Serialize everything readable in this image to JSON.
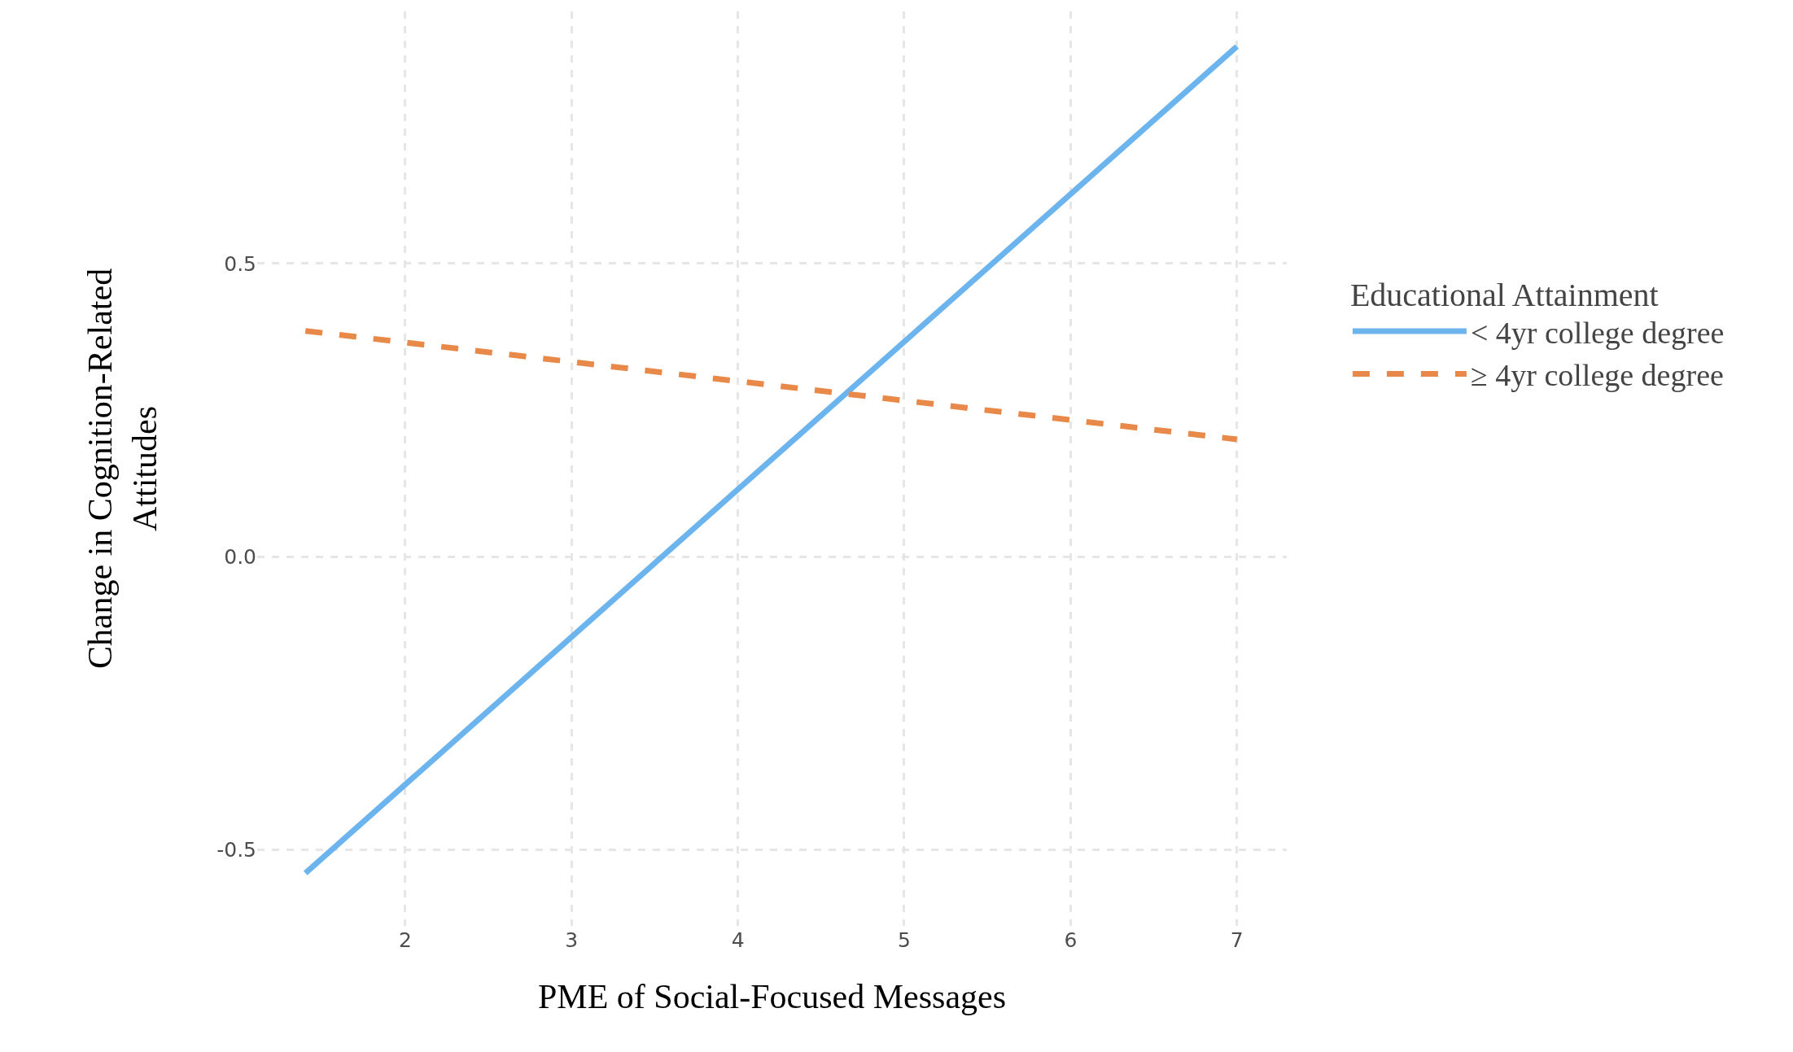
{
  "chart_data": {
    "type": "line",
    "xlabel": "PME of Social-Focused Messages",
    "ylabel": "Change in Cognition-Related\nAttitudes",
    "legend_title": "Educational Attainment",
    "x": [
      1.4,
      7
    ],
    "series": [
      {
        "name": "< 4yr college degree",
        "color": "#6cb4ee",
        "values": [
          -0.54,
          0.87
        ],
        "line_style": "solid"
      },
      {
        "name": "≥ 4yr college degree",
        "color": "#e8894a",
        "values": [
          0.385,
          0.2
        ],
        "line_style": "dashed"
      }
    ],
    "xlim": [
      1.11,
      7.3
    ],
    "xticks": [
      2,
      3,
      4,
      5,
      6,
      7
    ],
    "ylim": [
      -0.63,
      0.93
    ],
    "yticks": [
      -0.5,
      {
        "value": 0,
        "label": "0.0"
      },
      0.5
    ],
    "grid": true,
    "legend": "right",
    "marker": "none"
  }
}
